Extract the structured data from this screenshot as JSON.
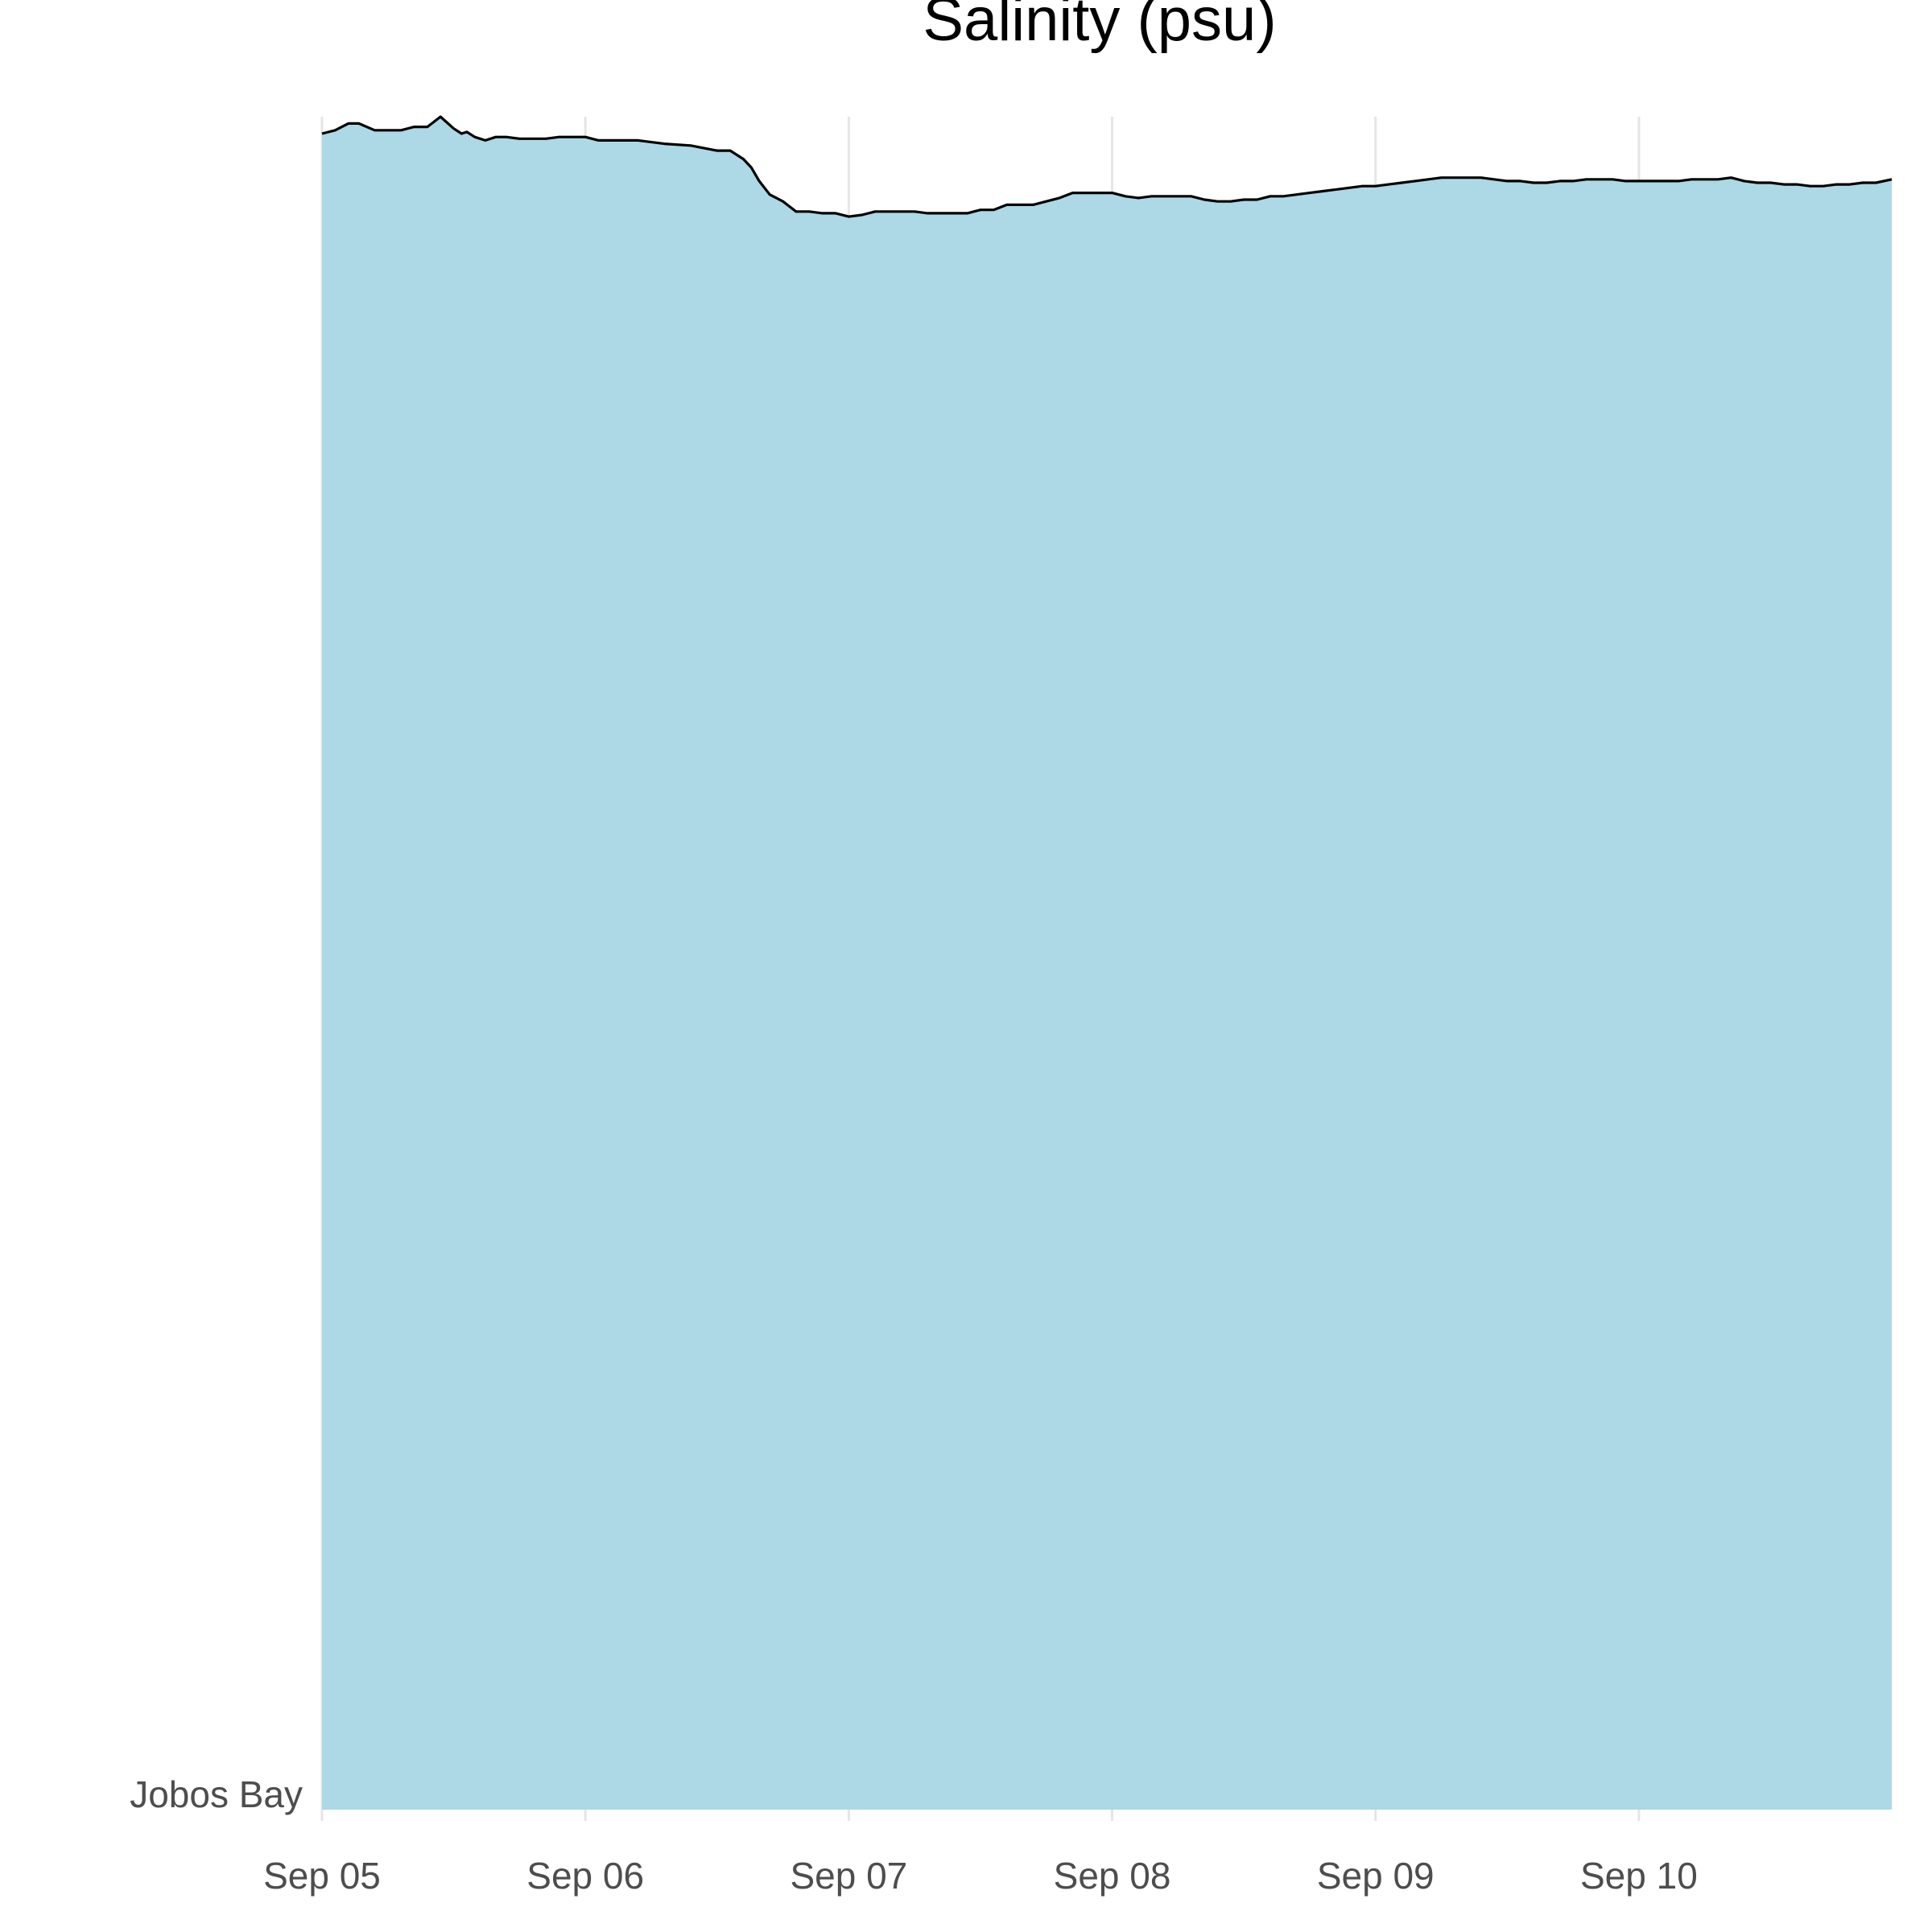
{
  "chart_data": {
    "type": "area",
    "title": "Salinity (psu)",
    "xlabel": "",
    "ylabel": "",
    "y_category": "Jobos Bay",
    "x_ticks": [
      "Sep 05",
      "Sep 06",
      "Sep 07",
      "Sep 08",
      "Sep 09",
      "Sep 10"
    ],
    "x_range_days": [
      0,
      5.96
    ],
    "y_range_rel": [
      0,
      1
    ],
    "grid": "vertical",
    "fill_color": "#add8e6",
    "line_color": "#000000",
    "series": [
      {
        "x": [
          0.0,
          0.05,
          0.1,
          0.14,
          0.2,
          0.25,
          0.3,
          0.35,
          0.4,
          0.45,
          0.5,
          0.53,
          0.55,
          0.58,
          0.62,
          0.66,
          0.7,
          0.75,
          0.8,
          0.85,
          0.9,
          0.95,
          1.0,
          1.05,
          1.1,
          1.15,
          1.2,
          1.3,
          1.4,
          1.5,
          1.55,
          1.6,
          1.63,
          1.66,
          1.7,
          1.75,
          1.8,
          1.85,
          1.9,
          1.95,
          2.0,
          2.05,
          2.1,
          2.15,
          2.2,
          2.25,
          2.3,
          2.35,
          2.4,
          2.45,
          2.5,
          2.55,
          2.6,
          2.65,
          2.7,
          2.75,
          2.8,
          2.85,
          2.9,
          2.95,
          3.0,
          3.05,
          3.1,
          3.15,
          3.2,
          3.25,
          3.3,
          3.35,
          3.4,
          3.45,
          3.5,
          3.55,
          3.6,
          3.65,
          3.7,
          3.75,
          3.8,
          3.85,
          3.9,
          3.95,
          4.0,
          4.05,
          4.1,
          4.15,
          4.2,
          4.25,
          4.3,
          4.35,
          4.4,
          4.45,
          4.5,
          4.55,
          4.6,
          4.65,
          4.7,
          4.75,
          4.8,
          4.85,
          4.9,
          4.95,
          5.0,
          5.05,
          5.1,
          5.15,
          5.2,
          5.25,
          5.3,
          5.35,
          5.4,
          5.45,
          5.5,
          5.55,
          5.6,
          5.65,
          5.7,
          5.75,
          5.8,
          5.85,
          5.9,
          5.96
        ],
        "y": [
          0.99,
          0.992,
          0.996,
          0.996,
          0.992,
          0.992,
          0.992,
          0.994,
          0.994,
          1.0,
          0.993,
          0.99,
          0.991,
          0.988,
          0.986,
          0.988,
          0.988,
          0.987,
          0.987,
          0.987,
          0.988,
          0.988,
          0.988,
          0.986,
          0.986,
          0.986,
          0.986,
          0.984,
          0.983,
          0.98,
          0.98,
          0.975,
          0.97,
          0.962,
          0.954,
          0.95,
          0.944,
          0.944,
          0.943,
          0.943,
          0.941,
          0.942,
          0.944,
          0.944,
          0.944,
          0.944,
          0.943,
          0.943,
          0.943,
          0.943,
          0.945,
          0.945,
          0.948,
          0.948,
          0.948,
          0.95,
          0.952,
          0.955,
          0.955,
          0.955,
          0.955,
          0.953,
          0.952,
          0.953,
          0.953,
          0.953,
          0.953,
          0.951,
          0.95,
          0.95,
          0.951,
          0.951,
          0.953,
          0.953,
          0.954,
          0.955,
          0.956,
          0.957,
          0.958,
          0.959,
          0.959,
          0.96,
          0.961,
          0.962,
          0.963,
          0.964,
          0.964,
          0.964,
          0.964,
          0.963,
          0.962,
          0.962,
          0.961,
          0.961,
          0.962,
          0.962,
          0.963,
          0.963,
          0.963,
          0.962,
          0.962,
          0.962,
          0.962,
          0.962,
          0.963,
          0.963,
          0.963,
          0.964,
          0.962,
          0.961,
          0.961,
          0.96,
          0.96,
          0.959,
          0.959,
          0.96,
          0.96,
          0.961,
          0.961,
          0.963
        ]
      }
    ]
  }
}
